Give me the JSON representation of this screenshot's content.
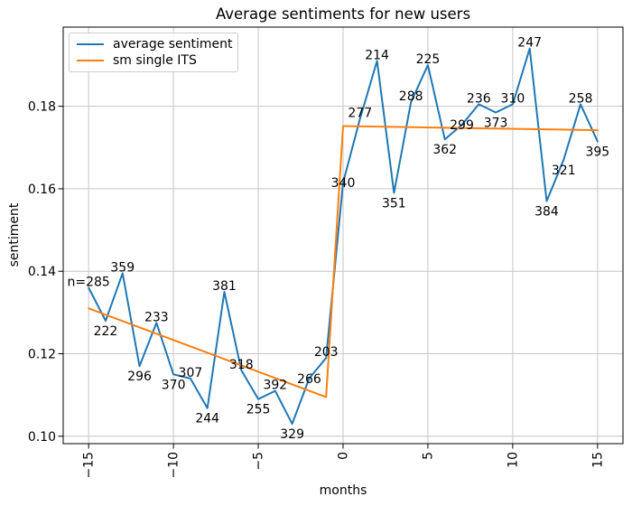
{
  "figure": {
    "background": "#ffffff",
    "frame_color": "#000000",
    "grid_color": "#c6c6c6",
    "text_color": "#000000"
  },
  "chart_data": {
    "type": "line",
    "title": "Average sentiments for new users",
    "xlabel": "months",
    "ylabel": "sentiment",
    "xlim": [
      -16.5,
      16.5
    ],
    "ylim": [
      0.0982,
      0.1992
    ],
    "xticks": [
      -15,
      -10,
      -5,
      0,
      5,
      10,
      15
    ],
    "xtick_labels": [
      "−15",
      "−10",
      "−5",
      "0",
      "5",
      "10",
      "15"
    ],
    "yticks": [
      0.1,
      0.12,
      0.14,
      0.16,
      0.18
    ],
    "ytick_labels": [
      "0.10",
      "0.12",
      "0.14",
      "0.16",
      "0.18"
    ],
    "grid": true,
    "legend_position": "upper-left",
    "series": [
      {
        "name": "average sentiment",
        "color": "#1f77b4",
        "x": [
          -15,
          -14,
          -13,
          -12,
          -11,
          -10,
          -9,
          -8,
          -7,
          -6,
          -5,
          -4,
          -3,
          -2,
          -1,
          0,
          1,
          2,
          3,
          4,
          5,
          6,
          7,
          8,
          9,
          10,
          11,
          12,
          13,
          14,
          15
        ],
        "y": [
          0.136,
          0.128,
          0.1395,
          0.117,
          0.1275,
          0.115,
          0.114,
          0.1068,
          0.135,
          0.116,
          0.109,
          0.111,
          0.103,
          0.114,
          0.119,
          0.1615,
          0.177,
          0.191,
          0.159,
          0.181,
          0.19,
          0.172,
          0.1755,
          0.1805,
          0.1785,
          0.1805,
          0.194,
          0.157,
          0.167,
          0.1805,
          0.1715
        ],
        "point_labels": [
          "n=285",
          "222",
          "359",
          "296",
          "233",
          "370",
          "307",
          "244",
          "381",
          "318",
          "255",
          "392",
          "329",
          "266",
          "203",
          "340",
          "277",
          "214",
          "351",
          "288",
          "225",
          "362",
          "299",
          "236",
          "373",
          "310",
          "247",
          "384",
          "321",
          "258",
          "395"
        ],
        "label_side": [
          "above",
          "below",
          "above",
          "below",
          "above",
          "below",
          "above",
          "below",
          "above",
          "above",
          "below",
          "above",
          "below",
          "center",
          "above",
          "center",
          "above",
          "above",
          "below",
          "above",
          "above",
          "below",
          "center",
          "above",
          "below",
          "above",
          "above",
          "below",
          "below",
          "above",
          "below"
        ]
      },
      {
        "name": "sm single ITS",
        "color": "#ff7f0e",
        "x": [
          -15,
          -1,
          0,
          15
        ],
        "y": [
          0.131,
          0.1095,
          0.1752,
          0.1742
        ]
      }
    ]
  }
}
